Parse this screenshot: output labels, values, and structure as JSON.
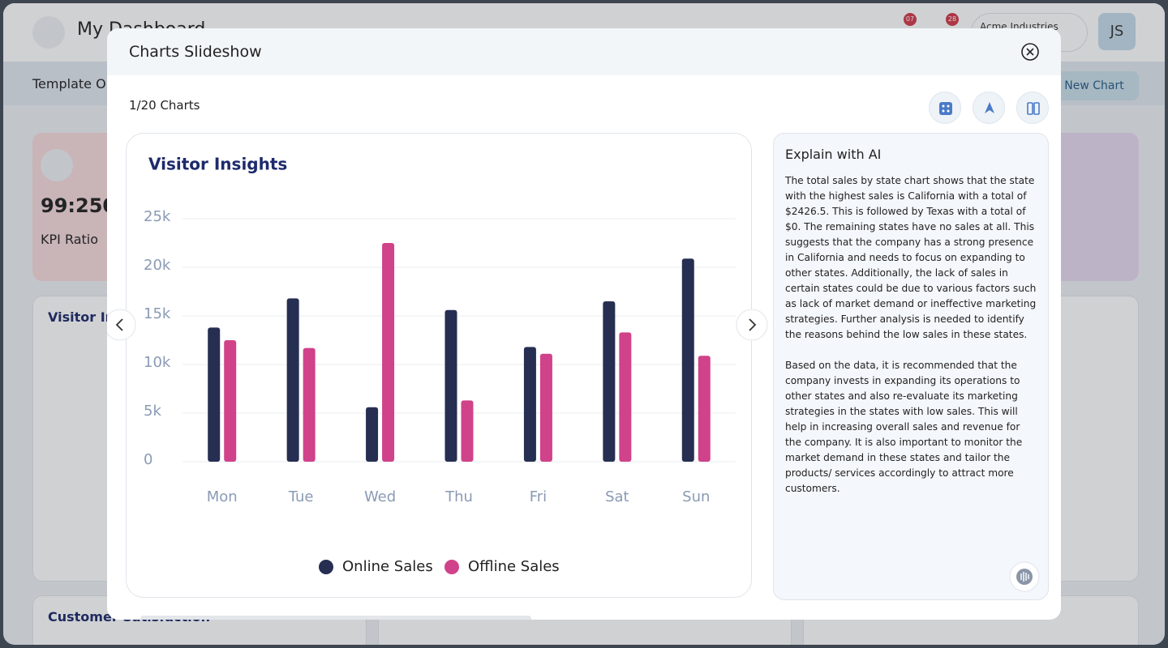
{
  "background": {
    "app_title": "My Dashboard",
    "company": "Acme Industries",
    "avatar": "JS",
    "badges": [
      "07",
      "28"
    ],
    "template_label": "Template O",
    "new_chart": "New Chart",
    "kpi_value": "99:250",
    "kpi_label": "KPI Ratio",
    "card_title": "Visitor Insights",
    "bottom_card": "Customer Satisfaction"
  },
  "modal": {
    "title": "Charts Slideshow",
    "counter": "1/20 Charts",
    "explain": {
      "title": "Explain with AI",
      "paragraphs": [
        "The total sales by state chart shows that the state with the highest sales is California with a total of $2426.5. This is followed by Texas with a total of $0. The remaining states have no sales at all. This suggests that the company has a strong presence in California and needs to focus on expanding to other states. Additionally, the lack of sales in certain states could be due to various factors such as lack of market demand or ineffective marketing strategies. Further analysis is needed to identify the reasons behind the low sales in these states.",
        "Based on the data, it is recommended that the company invests in expanding its operations to other states and also re-evaluate its marketing strategies in the states with low sales. This will help in increasing overall sales and revenue for the company. It is also important to monitor the market demand in these states and tailor the products/ services accordingly to attract more customers."
      ]
    }
  },
  "chart_data": {
    "type": "bar",
    "title": "Visitor Insights",
    "categories": [
      "Mon",
      "Tue",
      "Wed",
      "Thu",
      "Fri",
      "Sat",
      "Sun"
    ],
    "series": [
      {
        "name": "Online Sales",
        "color": "#262f52",
        "values": [
          13800,
          16800,
          5600,
          15600,
          11800,
          16500,
          20900
        ]
      },
      {
        "name": "Offline Sales",
        "color": "#d0428a",
        "values": [
          12500,
          11700,
          22500,
          6300,
          11100,
          13300,
          10900
        ]
      }
    ],
    "ylim": [
      0,
      25000
    ],
    "yticks": [
      0,
      {
        "value": 5000,
        "label": "5k"
      },
      {
        "value": 10000,
        "label": "10k"
      },
      {
        "value": 15000,
        "label": "15k"
      },
      {
        "value": 20000,
        "label": "20k"
      },
      {
        "value": 25000,
        "label": "25k"
      }
    ],
    "grid": true,
    "legend": "bottom"
  }
}
